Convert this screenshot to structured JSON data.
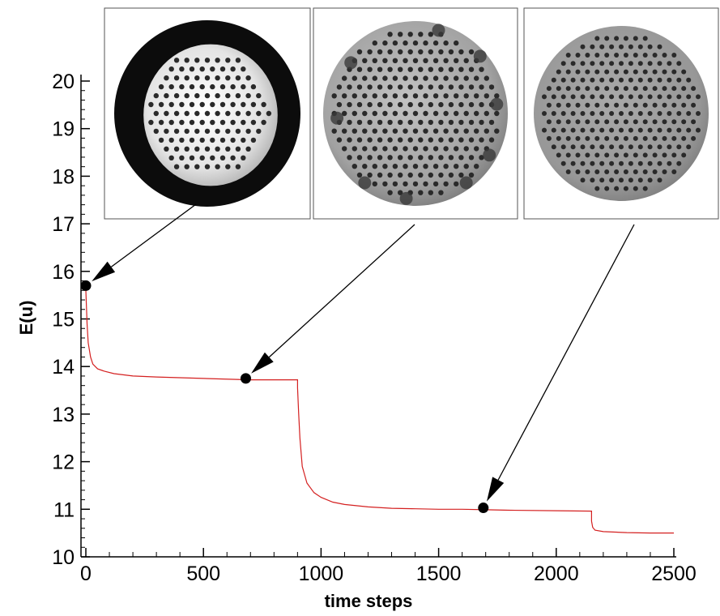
{
  "chart_data": {
    "type": "line",
    "xlabel": "time steps",
    "ylabel": "E(u)",
    "xlim": [
      0,
      2500
    ],
    "ylim": [
      10,
      20
    ],
    "xticks": [
      0,
      500,
      1000,
      1500,
      2000,
      2500
    ],
    "yticks": [
      10,
      11,
      12,
      13,
      14,
      15,
      16,
      17,
      18,
      19,
      20
    ],
    "grid": false,
    "series": [
      {
        "color": "#d42020",
        "x": [
          0,
          5,
          10,
          20,
          30,
          50,
          80,
          120,
          200,
          300,
          500,
          700,
          900,
          900,
          905,
          910,
          920,
          940,
          970,
          1000,
          1050,
          1100,
          1200,
          1300,
          1400,
          1500,
          1600,
          1700,
          1800,
          2000,
          2150,
          2150,
          2155,
          2165,
          2200,
          2300,
          2400,
          2500
        ],
        "y": [
          15.6,
          14.9,
          14.5,
          14.2,
          14.05,
          13.95,
          13.9,
          13.85,
          13.8,
          13.78,
          13.75,
          13.72,
          13.72,
          13.55,
          13.0,
          12.5,
          11.9,
          11.55,
          11.35,
          11.25,
          11.15,
          11.1,
          11.05,
          11.02,
          11.01,
          11.0,
          11.0,
          10.99,
          10.98,
          10.97,
          10.96,
          10.75,
          10.62,
          10.56,
          10.53,
          10.51,
          10.5,
          10.5
        ]
      }
    ],
    "markers": [
      {
        "x": 0,
        "y": 15.7
      },
      {
        "x": 680,
        "y": 13.75
      },
      {
        "x": 1690,
        "y": 11.03
      }
    ],
    "insets": [
      {
        "name": "initial-state",
        "pattern": "dark-ring"
      },
      {
        "name": "intermediate-state",
        "pattern": "mid"
      },
      {
        "name": "final-state",
        "pattern": "uniform"
      }
    ]
  }
}
